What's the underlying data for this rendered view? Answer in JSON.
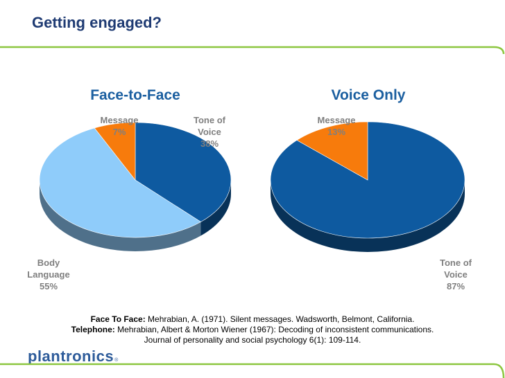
{
  "slide": {
    "title": "Getting engaged?",
    "brand": "plantronics",
    "brand_mark": "®",
    "accent_color": "#8cc63f"
  },
  "references": {
    "face_label": "Face To Face:",
    "face_text": " Mehrabian, A. (1971). Silent messages. Wadsworth, Belmont, California.",
    "phone_label": "Telephone:",
    "phone_text": " Mehrabian, Albert & Morton Wiener (1967): Decoding of inconsistent communications.",
    "phone_text2": "Journal of personality and social psychology 6(1): 109-114."
  },
  "chart_data": [
    {
      "type": "pie",
      "title": "Face-to-Face",
      "slices": [
        {
          "label": "Tone of Voice",
          "label_lines": [
            "Tone of",
            "Voice"
          ],
          "value": 38,
          "value_label": "38%",
          "color": "#0e5aa0"
        },
        {
          "label": "Body Language",
          "label_lines": [
            "Body",
            "Language"
          ],
          "value": 55,
          "value_label": "55%",
          "color": "#8fccfa"
        },
        {
          "label": "Message",
          "label_lines": [
            "Message"
          ],
          "value": 7,
          "value_label": "7%",
          "color": "#f77b0c"
        }
      ]
    },
    {
      "type": "pie",
      "title": "Voice Only",
      "slices": [
        {
          "label": "Tone of Voice",
          "label_lines": [
            "Tone of",
            "Voice"
          ],
          "value": 87,
          "value_label": "87%",
          "color": "#0e5aa0"
        },
        {
          "label": "Message",
          "label_lines": [
            "Message"
          ],
          "value": 13,
          "value_label": "13%",
          "color": "#f77b0c"
        }
      ]
    }
  ]
}
